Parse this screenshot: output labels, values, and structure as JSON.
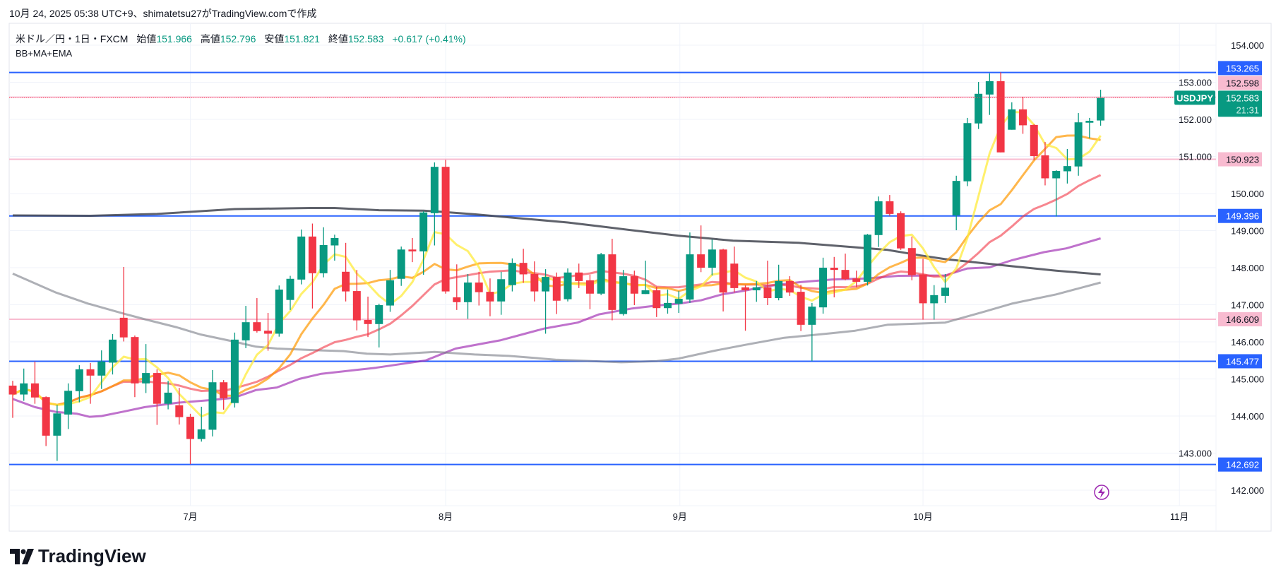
{
  "caption": "10月 24, 2025 05:38 UTC+9、shimatetsu27がTradingView.comで作成",
  "legend": {
    "symbol": "米ドル／円・1日・FXCM",
    "open_label": "始値",
    "open": "151.966",
    "high_label": "高値",
    "high": "152.796",
    "low_label": "安値",
    "low": "151.821",
    "close_label": "終値",
    "close": "152.583",
    "change": "+0.617 (+0.41%)"
  },
  "indicator_label": "BB+MA+EMA",
  "ticker_tag": "USDJPY",
  "countdown": "21:31",
  "logo_text": "TradingView",
  "colors": {
    "up": "#089981",
    "down": "#f23645",
    "blue_line": "#2962ff",
    "pink_line": "#f8bbd0"
  },
  "chart_data": {
    "type": "candlestick",
    "title": "米ドル／円・1日・FXCM",
    "x_unit": "trading-day index",
    "ylim": [
      141.6,
      154.3
    ],
    "y_ticks": [
      "142.000",
      "143.000",
      "144.000",
      "145.000",
      "146.000",
      "147.000",
      "148.000",
      "149.000",
      "150.000",
      "151.000",
      "152.000",
      "153.000",
      "154.000"
    ],
    "x_ticks": [
      {
        "label": "7月",
        "i": 16
      },
      {
        "label": "8月",
        "i": 39
      },
      {
        "label": "9月",
        "i": 60.1
      },
      {
        "label": "10月",
        "i": 82
      },
      {
        "label": "11月",
        "i": 105.1
      }
    ],
    "grid": true,
    "ohlc": [
      [
        144.82,
        144.95,
        143.95,
        144.58
      ],
      [
        144.58,
        145.28,
        144.41,
        144.88
      ],
      [
        144.88,
        145.47,
        144.33,
        144.5
      ],
      [
        144.51,
        144.53,
        143.19,
        143.47
      ],
      [
        143.47,
        144.3,
        142.79,
        144.07
      ],
      [
        144.04,
        144.88,
        143.65,
        144.68
      ],
      [
        144.67,
        145.37,
        144.37,
        145.26
      ],
      [
        145.26,
        145.43,
        144.33,
        145.09
      ],
      [
        145.09,
        145.77,
        144.73,
        145.47
      ],
      [
        145.44,
        146.21,
        145.12,
        146.06
      ],
      [
        146.65,
        148.02,
        146.01,
        146.12
      ],
      [
        146.13,
        146.17,
        144.51,
        144.88
      ],
      [
        144.88,
        145.94,
        144.62,
        145.16
      ],
      [
        145.16,
        145.26,
        143.76,
        144.33
      ],
      [
        144.33,
        144.95,
        144.18,
        144.63
      ],
      [
        144.29,
        144.76,
        143.77,
        143.97
      ],
      [
        143.98,
        144.06,
        142.7,
        143.38
      ],
      [
        143.38,
        144.25,
        143.31,
        143.64
      ],
      [
        143.63,
        145.24,
        143.45,
        144.91
      ],
      [
        144.91,
        144.97,
        144.17,
        144.48
      ],
      [
        144.35,
        146.25,
        144.23,
        146.06
      ],
      [
        146.04,
        146.97,
        145.83,
        146.53
      ],
      [
        146.53,
        147.18,
        146.25,
        146.29
      ],
      [
        146.3,
        146.78,
        145.76,
        146.22
      ],
      [
        146.22,
        147.52,
        146.14,
        147.41
      ],
      [
        147.13,
        147.78,
        146.86,
        147.7
      ],
      [
        147.68,
        149.03,
        147.55,
        148.84
      ],
      [
        148.84,
        149.19,
        146.9,
        147.85
      ],
      [
        147.85,
        149.09,
        147.74,
        148.61
      ],
      [
        148.6,
        148.89,
        148.19,
        148.8
      ],
      [
        147.89,
        148.67,
        147.09,
        147.36
      ],
      [
        147.37,
        147.94,
        146.31,
        146.58
      ],
      [
        146.59,
        147.22,
        146.13,
        146.48
      ],
      [
        146.48,
        147.03,
        145.85,
        146.99
      ],
      [
        146.98,
        147.94,
        146.81,
        147.66
      ],
      [
        147.7,
        148.57,
        147.51,
        148.49
      ],
      [
        148.49,
        148.8,
        148.15,
        148.44
      ],
      [
        148.44,
        149.52,
        147.81,
        149.49
      ],
      [
        149.47,
        150.84,
        148.6,
        150.72
      ],
      [
        150.72,
        150.91,
        147.3,
        147.36
      ],
      [
        147.2,
        148.09,
        146.86,
        147.07
      ],
      [
        147.07,
        147.83,
        146.62,
        147.6
      ],
      [
        147.6,
        147.89,
        146.98,
        147.34
      ],
      [
        147.35,
        147.71,
        146.69,
        147.09
      ],
      [
        147.09,
        147.89,
        146.73,
        147.69
      ],
      [
        147.53,
        148.25,
        147.36,
        148.13
      ],
      [
        148.13,
        148.51,
        147.59,
        147.82
      ],
      [
        147.83,
        148.17,
        147.09,
        147.36
      ],
      [
        147.36,
        147.96,
        146.22,
        147.75
      ],
      [
        147.75,
        147.87,
        146.75,
        147.11
      ],
      [
        147.15,
        147.98,
        147.09,
        147.87
      ],
      [
        147.87,
        148.11,
        147.45,
        147.64
      ],
      [
        147.66,
        147.81,
        146.88,
        147.3
      ],
      [
        147.3,
        148.4,
        147.26,
        148.36
      ],
      [
        148.36,
        148.78,
        146.58,
        146.86
      ],
      [
        146.75,
        147.94,
        146.71,
        147.77
      ],
      [
        147.77,
        147.92,
        146.99,
        147.3
      ],
      [
        147.29,
        148.19,
        147.29,
        147.39
      ],
      [
        147.39,
        147.49,
        146.67,
        146.91
      ],
      [
        146.91,
        147.41,
        146.76,
        147.05
      ],
      [
        147.03,
        147.37,
        146.78,
        147.16
      ],
      [
        147.14,
        148.95,
        147.05,
        148.36
      ],
      [
        148.36,
        149.14,
        147.88,
        148.0
      ],
      [
        148.0,
        148.76,
        147.79,
        148.49
      ],
      [
        148.49,
        148.51,
        146.82,
        147.33
      ],
      [
        148.11,
        148.57,
        147.33,
        147.45
      ],
      [
        147.47,
        147.52,
        146.3,
        147.39
      ],
      [
        147.39,
        147.64,
        147.08,
        147.47
      ],
      [
        147.47,
        148.19,
        146.99,
        147.18
      ],
      [
        147.18,
        148.08,
        147.12,
        147.64
      ],
      [
        147.64,
        147.77,
        147.24,
        147.33
      ],
      [
        147.35,
        147.54,
        146.29,
        146.46
      ],
      [
        146.46,
        147.05,
        145.48,
        146.95
      ],
      [
        146.93,
        148.27,
        146.76,
        148.0
      ],
      [
        148.0,
        148.29,
        147.2,
        147.94
      ],
      [
        147.94,
        148.38,
        147.66,
        147.69
      ],
      [
        147.71,
        147.92,
        147.47,
        147.62
      ],
      [
        147.62,
        148.91,
        147.52,
        148.89
      ],
      [
        148.88,
        149.92,
        148.56,
        149.79
      ],
      [
        149.79,
        149.96,
        149.4,
        149.45
      ],
      [
        149.47,
        149.52,
        148.48,
        148.52
      ],
      [
        148.53,
        148.84,
        147.66,
        147.8
      ],
      [
        147.82,
        148.24,
        146.6,
        147.04
      ],
      [
        147.04,
        147.53,
        146.6,
        147.26
      ],
      [
        147.24,
        147.83,
        147.05,
        147.46
      ],
      [
        149.41,
        150.48,
        149.01,
        150.34
      ],
      [
        150.33,
        152.04,
        150.2,
        151.9
      ],
      [
        151.89,
        153.01,
        151.74,
        152.69
      ],
      [
        152.67,
        153.24,
        152.12,
        153.03
      ],
      [
        153.03,
        153.27,
        151.11,
        151.11
      ],
      [
        151.72,
        152.46,
        151.72,
        152.27
      ],
      [
        152.27,
        152.61,
        151.61,
        151.84
      ],
      [
        151.85,
        151.87,
        150.9,
        151.01
      ],
      [
        151.03,
        151.39,
        150.22,
        150.41
      ],
      [
        150.41,
        150.63,
        149.38,
        150.61
      ],
      [
        150.6,
        151.2,
        150.27,
        150.74
      ],
      [
        150.73,
        152.17,
        150.48,
        151.92
      ],
      [
        151.91,
        152.04,
        151.49,
        151.96
      ],
      [
        151.97,
        152.8,
        151.83,
        152.58
      ]
    ],
    "computed_ma": [
      {
        "name": "MA5",
        "period": 5,
        "color": "rgba(255,235,59,0.75)"
      },
      {
        "name": "MA10",
        "period": 10,
        "color": "rgba(255,152,0,0.7)"
      },
      {
        "name": "MA20",
        "period": 20,
        "color": "rgba(242,54,69,0.6)"
      }
    ],
    "sampled_ma": [
      {
        "name": "MA-purple",
        "color": "rgba(156,39,176,0.65)",
        "points": [
          [
            0,
            144.46
          ],
          [
            2,
            144.24
          ],
          [
            3.9,
            144.11
          ],
          [
            5.8,
            144.06
          ],
          [
            6.9,
            143.98
          ],
          [
            8,
            144.0
          ],
          [
            10,
            144.12
          ],
          [
            11.9,
            144.24
          ],
          [
            14.9,
            144.36
          ],
          [
            17.9,
            144.43
          ],
          [
            19.9,
            144.49
          ],
          [
            21.9,
            144.7
          ],
          [
            23.8,
            144.77
          ],
          [
            25.8,
            145.0
          ],
          [
            27.8,
            145.14
          ],
          [
            32.7,
            145.3
          ],
          [
            37.2,
            145.5
          ],
          [
            39.9,
            145.82
          ],
          [
            43.9,
            146.04
          ],
          [
            45.9,
            146.2
          ],
          [
            47.9,
            146.36
          ],
          [
            50.9,
            146.52
          ],
          [
            52.8,
            146.74
          ],
          [
            55.8,
            146.9
          ],
          [
            58,
            146.98
          ],
          [
            60,
            147.03
          ],
          [
            62,
            147.12
          ],
          [
            63.9,
            147.28
          ],
          [
            65.9,
            147.38
          ],
          [
            67.9,
            147.5
          ],
          [
            70.9,
            147.61
          ],
          [
            73.8,
            147.68
          ],
          [
            76.9,
            147.71
          ],
          [
            79.8,
            147.78
          ],
          [
            84,
            147.79
          ],
          [
            86,
            147.98
          ],
          [
            88,
            148.01
          ],
          [
            90,
            148.2
          ],
          [
            92.9,
            148.42
          ],
          [
            94.9,
            148.52
          ],
          [
            98,
            148.79
          ]
        ]
      },
      {
        "name": "MA-dark",
        "color": "rgba(67,70,81,0.85)",
        "points": [
          [
            0,
            149.41
          ],
          [
            7,
            149.4
          ],
          [
            13,
            149.45
          ],
          [
            20,
            149.58
          ],
          [
            26.8,
            149.61
          ],
          [
            29,
            149.61
          ],
          [
            33,
            149.55
          ],
          [
            37,
            149.54
          ],
          [
            39,
            149.5
          ],
          [
            41.6,
            149.44
          ],
          [
            45.8,
            149.33
          ],
          [
            50,
            149.22
          ],
          [
            52.8,
            149.12
          ],
          [
            55.8,
            149.01
          ],
          [
            60,
            148.86
          ],
          [
            64.9,
            148.73
          ],
          [
            70.8,
            148.67
          ],
          [
            75.9,
            148.55
          ],
          [
            78.8,
            148.48
          ],
          [
            81.8,
            148.33
          ],
          [
            84,
            148.23
          ],
          [
            90,
            148.04
          ],
          [
            94,
            147.92
          ],
          [
            98,
            147.82
          ]
        ]
      },
      {
        "name": "MA-light",
        "color": "rgba(120,123,134,0.6)",
        "points": [
          [
            0,
            147.84
          ],
          [
            1,
            147.71
          ],
          [
            3.9,
            147.33
          ],
          [
            6.8,
            147.03
          ],
          [
            10,
            146.76
          ],
          [
            11.9,
            146.61
          ],
          [
            14.8,
            146.39
          ],
          [
            16.9,
            146.2
          ],
          [
            19.9,
            146.01
          ],
          [
            21.9,
            145.87
          ],
          [
            23.8,
            145.82
          ],
          [
            27.8,
            145.77
          ],
          [
            29.8,
            145.75
          ],
          [
            31.9,
            145.68
          ],
          [
            34,
            145.66
          ],
          [
            38,
            145.73
          ],
          [
            41.6,
            145.66
          ],
          [
            44.7,
            145.62
          ],
          [
            48.9,
            145.52
          ],
          [
            54.8,
            145.45
          ],
          [
            58,
            145.48
          ],
          [
            60,
            145.55
          ],
          [
            63.2,
            145.76
          ],
          [
            66,
            145.92
          ],
          [
            69.5,
            146.11
          ],
          [
            73.7,
            146.23
          ],
          [
            75.9,
            146.3
          ],
          [
            78.8,
            146.46
          ],
          [
            84,
            146.52
          ],
          [
            87,
            146.77
          ],
          [
            90,
            147.03
          ],
          [
            94,
            147.28
          ],
          [
            98,
            147.6
          ]
        ]
      }
    ],
    "hlines": [
      {
        "price": 153.265,
        "label": "153.265",
        "style": "blue"
      },
      {
        "price": 152.598,
        "label": "152.598",
        "style": "pink"
      },
      {
        "price": 150.923,
        "label": "150.923",
        "style": "pink"
      },
      {
        "price": 149.396,
        "label": "149.396",
        "style": "blue"
      },
      {
        "price": 146.609,
        "label": "146.609",
        "style": "pink"
      },
      {
        "price": 145.477,
        "label": "145.477",
        "style": "blue"
      },
      {
        "price": 142.692,
        "label": "142.692",
        "style": "blue"
      }
    ],
    "last_price": {
      "price": 152.583,
      "label": "152.583"
    }
  }
}
